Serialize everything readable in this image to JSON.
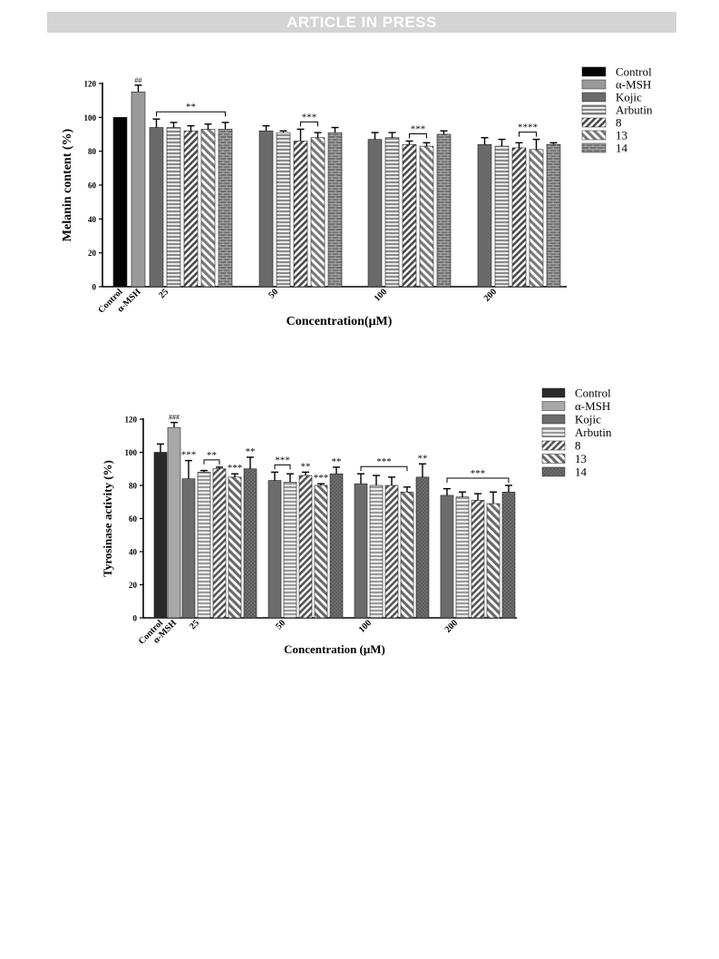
{
  "header": {
    "banner_text": "ARTICLE IN PRESS"
  },
  "chart_data": [
    {
      "type": "bar",
      "ylabel": "Melanin content (%)",
      "xlabel": "Concentration(μM)",
      "ylim": [
        0,
        120
      ],
      "yticks": [
        0,
        20,
        40,
        60,
        80,
        100,
        120
      ],
      "groups": [
        "Control",
        "α-MSH",
        "25",
        "50",
        "100",
        "200"
      ],
      "legend": [
        "Control",
        "α-MSH",
        "Kojic",
        "Arbutin",
        "8",
        "13",
        "14"
      ],
      "legend_position": "top-right",
      "control": {
        "value": 100,
        "error": 0
      },
      "msh": {
        "value": 115,
        "error": 4,
        "annotation": "##"
      },
      "series": [
        {
          "name": "Kojic",
          "values": [
            94,
            92,
            87,
            84
          ],
          "errors": [
            5,
            3,
            4,
            4
          ]
        },
        {
          "name": "Arbutin",
          "values": [
            94,
            91,
            88,
            83
          ],
          "errors": [
            3,
            1,
            3,
            4
          ]
        },
        {
          "name": "8",
          "values": [
            92,
            86,
            84,
            82
          ],
          "errors": [
            3,
            7,
            2,
            3
          ]
        },
        {
          "name": "13",
          "values": [
            93,
            88,
            83,
            81
          ],
          "errors": [
            3,
            3,
            2,
            6
          ]
        },
        {
          "name": "14",
          "values": [
            93,
            91,
            90,
            84
          ],
          "errors": [
            4,
            3,
            2,
            1
          ]
        }
      ],
      "significance": [
        {
          "group": "25",
          "label": "**",
          "from": 0,
          "to": 4
        },
        {
          "group": "50",
          "label": "***",
          "from": 2,
          "to": 3
        },
        {
          "group": "100",
          "label": "***",
          "from": 2,
          "to": 3
        },
        {
          "group": "200",
          "label": "****",
          "from": 2,
          "to": 3
        }
      ]
    },
    {
      "type": "bar",
      "ylabel": "Tyrosinase activity (%)",
      "xlabel": "Concentration (μM)",
      "ylim": [
        0,
        120
      ],
      "yticks": [
        0,
        20,
        40,
        60,
        80,
        100,
        120
      ],
      "groups": [
        "Control",
        "α-MSH",
        "25",
        "50",
        "100",
        "200"
      ],
      "legend": [
        "Control",
        "α-MSH",
        "Kojic",
        "Arbutin",
        "8",
        "13",
        "14"
      ],
      "legend_position": "top-right",
      "control": {
        "value": 100,
        "error": 5
      },
      "msh": {
        "value": 115,
        "error": 3,
        "annotation": "###"
      },
      "series": [
        {
          "name": "Kojic",
          "values": [
            84,
            83,
            81,
            74
          ],
          "errors": [
            11,
            5,
            6,
            4
          ]
        },
        {
          "name": "Arbutin",
          "values": [
            88,
            82,
            80,
            73
          ],
          "errors": [
            1,
            5,
            6,
            3
          ]
        },
        {
          "name": "8",
          "values": [
            90,
            86,
            80,
            71
          ],
          "errors": [
            1,
            2,
            5,
            4
          ]
        },
        {
          "name": "13",
          "values": [
            85,
            80,
            76,
            69
          ],
          "errors": [
            2,
            1,
            3,
            7
          ]
        },
        {
          "name": "14",
          "values": [
            90,
            87,
            85,
            76
          ],
          "errors": [
            7,
            4,
            8,
            4
          ]
        }
      ],
      "bar_labels": [
        {
          "group": "25",
          "series": "Kojic",
          "label": "***"
        },
        {
          "group": "25",
          "series": "13",
          "label": "***"
        },
        {
          "group": "25",
          "series": "14",
          "label": "**"
        },
        {
          "group": "50",
          "series": "8",
          "label": "**"
        },
        {
          "group": "50",
          "series": "13",
          "label": "***"
        },
        {
          "group": "50",
          "series": "14",
          "label": "**"
        },
        {
          "group": "100",
          "series": "14",
          "label": "**"
        }
      ],
      "significance": [
        {
          "group": "25",
          "label": "**",
          "from": 1,
          "to": 2
        },
        {
          "group": "50",
          "label": "***",
          "from": 0,
          "to": 1
        },
        {
          "group": "100",
          "label": "***",
          "from": 0,
          "to": 3
        },
        {
          "group": "200",
          "label": "***",
          "from": 0,
          "to": 4
        }
      ]
    }
  ]
}
